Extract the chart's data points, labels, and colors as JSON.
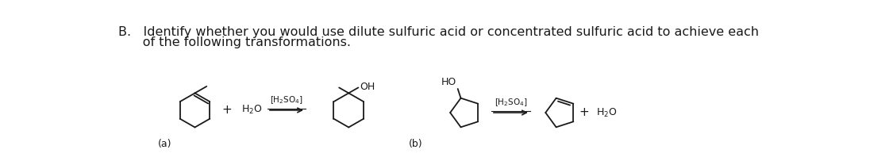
{
  "title_line1": "B.   Identify whether you would use dilute sulfuric acid or concentrated sulfuric acid to achieve each",
  "title_line2": "      of the following transformations.",
  "label_a": "(a)",
  "label_b": "(b)",
  "background": "#ffffff",
  "text_color": "#1a1a1a",
  "line_color": "#1a1a1a",
  "fontsize_title": 11.5,
  "fontsize_label": 9,
  "fontsize_chem": 9,
  "figwidth": 10.96,
  "figheight": 2.08,
  "dpi": 100
}
